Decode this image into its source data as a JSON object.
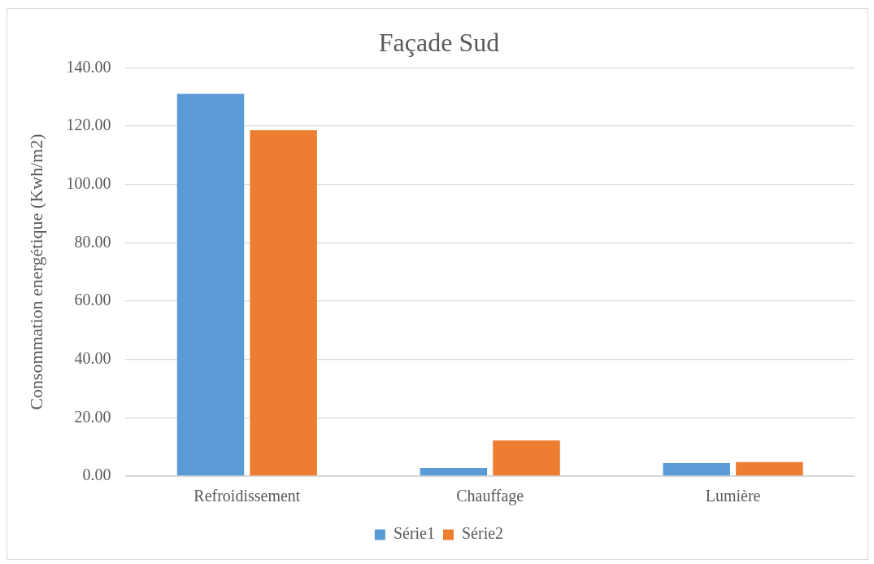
{
  "chart_data": {
    "type": "bar",
    "title": "Façade Sud",
    "ylabel": "Consommation energétique (Kwh/m2)",
    "categories": [
      "Refroidissement",
      "Chauffage",
      "Lumière"
    ],
    "series": [
      {
        "name": "Série1",
        "color": "#5b9bd5",
        "values": [
          131.1,
          2.8,
          4.5
        ]
      },
      {
        "name": "Série2",
        "color": "#ed7d31",
        "values": [
          118.6,
          12.2,
          4.8
        ]
      }
    ],
    "ylim": [
      0,
      140
    ],
    "yticks": [
      {
        "value": 0,
        "label": "0.00"
      },
      {
        "value": 20,
        "label": "20.00"
      },
      {
        "value": 40,
        "label": "40.00"
      },
      {
        "value": 60,
        "label": "60.00"
      },
      {
        "value": 80,
        "label": "80.00"
      },
      {
        "value": 100,
        "label": "100.00"
      },
      {
        "value": 120,
        "label": "120.00"
      },
      {
        "value": 140,
        "label": "140.00"
      }
    ],
    "grid": "y",
    "legend": "bottom"
  }
}
